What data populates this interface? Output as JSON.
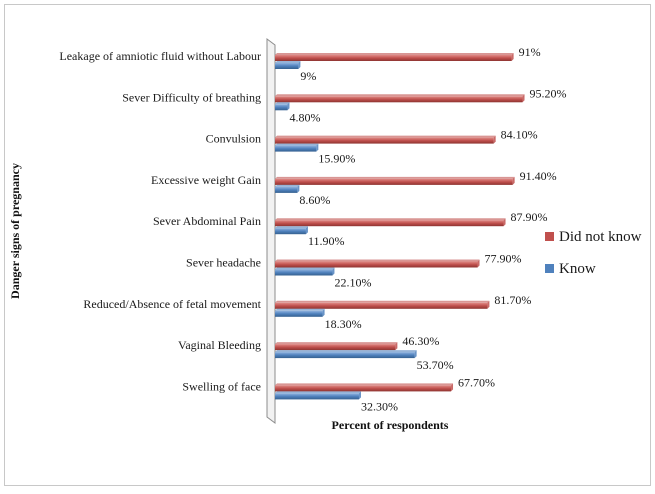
{
  "chart_data": {
    "type": "bar",
    "orientation": "horizontal",
    "ylabel": "Danger signs of pregnancy",
    "xlabel": "Percent of respondents",
    "xlim": [
      0,
      100
    ],
    "legend_position": "right",
    "categories": [
      "Leakage of amniotic fluid without Labour",
      "Sever Difficulty of breathing",
      "Convulsion",
      "Excessive weight Gain",
      "Sever Abdominal Pain",
      "Sever headache",
      "Reduced/Absence of fetal movement",
      "Vaginal Bleeding",
      "Swelling of face"
    ],
    "series": [
      {
        "name": "Did not know",
        "color": "#c0504d",
        "values": [
          91,
          95.2,
          84.1,
          91.4,
          87.9,
          77.9,
          81.7,
          46.3,
          67.7
        ],
        "labels": [
          "91%",
          "95.20%",
          "84.10%",
          "91.40%",
          "87.90%",
          "77.90%",
          "81.70%",
          "46.30%",
          "67.70%"
        ]
      },
      {
        "name": "Know",
        "color": "#4f81bd",
        "values": [
          9,
          4.8,
          15.9,
          8.6,
          11.9,
          22.1,
          18.3,
          53.7,
          32.3
        ],
        "labels": [
          "9%",
          "4.80%",
          "15.90%",
          "8.60%",
          "11.90%",
          "22.10%",
          "18.30%",
          "53.70%",
          "32.30%"
        ]
      }
    ]
  }
}
